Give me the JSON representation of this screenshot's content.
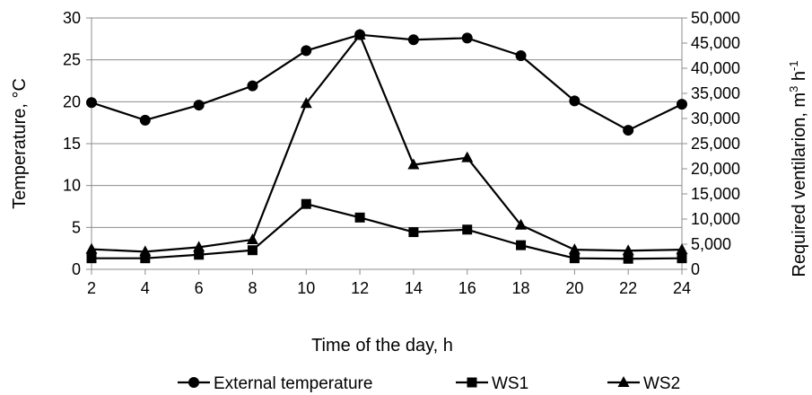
{
  "chart_data": {
    "type": "line",
    "x": [
      2,
      4,
      6,
      8,
      10,
      12,
      14,
      16,
      18,
      20,
      22,
      24
    ],
    "x_ticks": [
      "2",
      "4",
      "6",
      "8",
      "10",
      "12",
      "14",
      "16",
      "18",
      "20",
      "22",
      "24"
    ],
    "xlabel": "Time of the day, h",
    "ylabel_left": "Temperature, °C",
    "ylabel_right_main": "Required ventilarion, m",
    "ylabel_right_sup1": "3",
    "ylabel_right_mid": " h",
    "ylabel_right_sup2": "-1",
    "ylim_left": [
      0,
      30
    ],
    "ylim_right": [
      0,
      50000
    ],
    "left_ticks": [
      "0",
      "5",
      "10",
      "15",
      "20",
      "25",
      "30"
    ],
    "right_ticks": [
      "0",
      "5,000",
      "10,000",
      "15,000",
      "20,000",
      "25,000",
      "30,000",
      "35,000",
      "40,000",
      "45,000",
      "50,000"
    ],
    "grid": true,
    "legend_position": "bottom",
    "series": [
      {
        "name": "External temperature",
        "axis": "left",
        "marker": "circle",
        "color": "#000000",
        "values": [
          19.9,
          17.8,
          19.6,
          21.9,
          26.1,
          28.0,
          27.4,
          27.6,
          25.5,
          20.1,
          16.6,
          19.7
        ]
      },
      {
        "name": "WS1",
        "axis": "right",
        "marker": "square",
        "color": "#000000",
        "values": [
          2200,
          2200,
          2900,
          3800,
          13000,
          10300,
          7400,
          7900,
          4800,
          2200,
          2100,
          2200
        ]
      },
      {
        "name": "WS2",
        "axis": "right",
        "marker": "triangle",
        "color": "#000000",
        "values": [
          4000,
          3500,
          4400,
          5900,
          33000,
          46600,
          20800,
          22200,
          8800,
          3900,
          3700,
          3900
        ]
      }
    ]
  }
}
